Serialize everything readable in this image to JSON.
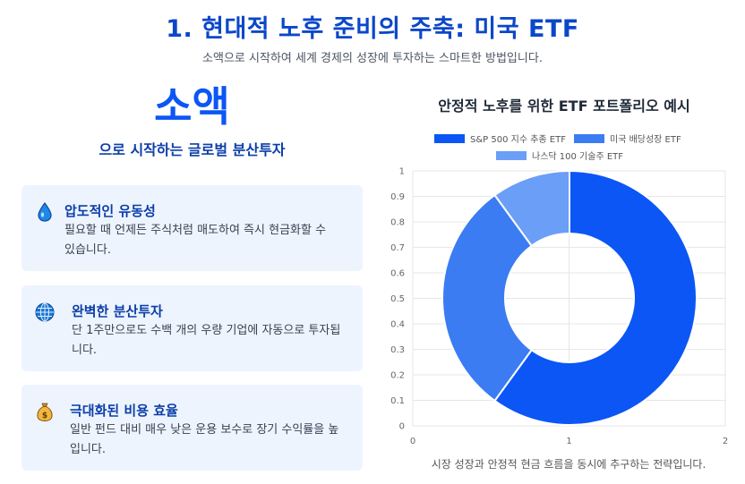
{
  "header": {
    "title": "1. 현대적 노후 준비의 주축: 미국 ETF",
    "subtitle": "소액으로 시작하여 세계 경제의 성장에 투자하는 스마트한 방법입니다."
  },
  "hero": {
    "big_word": "소액",
    "sub": "으로 시작하는 글로벌 분산투자"
  },
  "cards": [
    {
      "icon": "water-drop-icon",
      "title": "압도적인 유동성",
      "desc": "필요할 때 언제든 주식처럼 매도하여 즉시 현금화할 수 있습니다."
    },
    {
      "icon": "globe-icon",
      "title": "완벽한 분산투자",
      "desc": "단 1주만으로도 수백 개의 우량 기업에 자동으로 투자됩니다."
    },
    {
      "icon": "money-bag-icon",
      "title": "극대화된 비용 효율",
      "desc": "일반 펀드 대비 매우 낮은 운용 보수로 장기 수익률을 높입니다."
    }
  ],
  "chart_data": {
    "type": "pie",
    "style": "doughnut",
    "title": "안정적 노후를 위한 ETF 포트폴리오 예시",
    "labels": [
      "S&P 500 지수 추종 ETF",
      "미국 배당성장 ETF",
      "나스닥 100 기술주 ETF"
    ],
    "values": [
      60,
      30,
      10
    ],
    "colors": [
      "#0b56f5",
      "#3b7cf2",
      "#6b9ef7"
    ],
    "legend_position": "top",
    "x_ticks": [
      "0",
      "1",
      "2"
    ],
    "y_ticks": [
      "0",
      "0.1",
      "0.2",
      "0.3",
      "0.4",
      "0.5",
      "0.6",
      "0.7",
      "0.8",
      "0.9",
      "1"
    ],
    "grid": true
  },
  "caption": "시장 성장과 안정적 현금 흐름을 동시에 추구하는 전략입니다."
}
